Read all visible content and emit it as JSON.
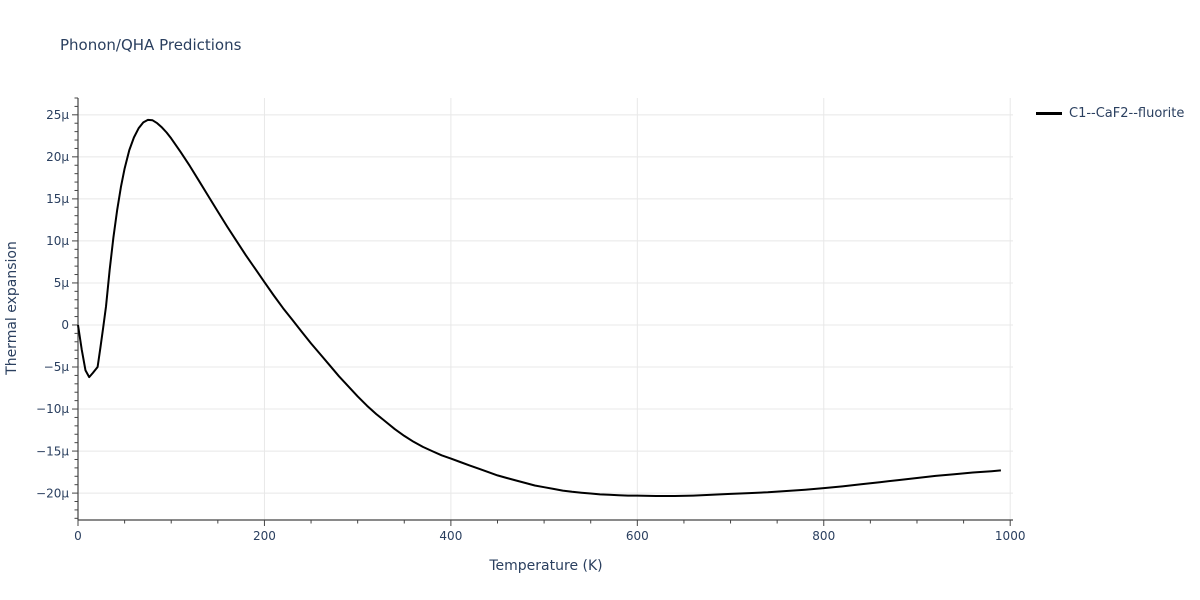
{
  "chart_data": {
    "type": "line",
    "title": "Phonon/QHA Predictions",
    "xlabel": "Temperature (K)",
    "ylabel": "Thermal expansion",
    "x_range": [
      0,
      1003
    ],
    "y_range": [
      -23.2,
      27.0
    ],
    "x_ticks": [
      0,
      200,
      400,
      600,
      800,
      1000
    ],
    "x_tick_labels": [
      "0",
      "200",
      "400",
      "600",
      "800",
      "1000"
    ],
    "x_minor_step": 50,
    "y_ticks": [
      -20,
      -15,
      -10,
      -5,
      0,
      5,
      10,
      15,
      20,
      25
    ],
    "y_tick_labels": [
      "−20µ",
      "−15µ",
      "−10µ",
      "−5µ",
      "0",
      "5µ",
      "10µ",
      "15µ",
      "20µ",
      "25µ"
    ],
    "y_minor_step": 1,
    "grid": true,
    "legend_position": "top-right outside plot",
    "colors": {
      "text": "#2a3f5f",
      "axis": "#444444",
      "grid": "#e8e8e8",
      "background": "#ffffff"
    },
    "series": [
      {
        "name": "C1--CaF2--fluorite",
        "color": "#000000",
        "line_width": 2,
        "points": [
          [
            0,
            0
          ],
          [
            4,
            -2.9
          ],
          [
            8,
            -5.4
          ],
          [
            12,
            -6.2
          ],
          [
            16,
            -5.7
          ],
          [
            21,
            -5.0
          ],
          [
            24,
            -2.7
          ],
          [
            27,
            -0.3
          ],
          [
            30,
            2.2
          ],
          [
            34,
            6.6
          ],
          [
            38,
            10.4
          ],
          [
            42,
            13.7
          ],
          [
            46,
            16.4
          ],
          [
            50,
            18.6
          ],
          [
            55,
            20.8
          ],
          [
            60,
            22.3
          ],
          [
            65,
            23.4
          ],
          [
            70,
            24.1
          ],
          [
            75,
            24.4
          ],
          [
            80,
            24.35
          ],
          [
            85,
            24.0
          ],
          [
            90,
            23.5
          ],
          [
            95,
            22.9
          ],
          [
            100,
            22.2
          ],
          [
            110,
            20.6
          ],
          [
            120,
            18.9
          ],
          [
            130,
            17.1
          ],
          [
            140,
            15.3
          ],
          [
            150,
            13.5
          ],
          [
            160,
            11.7
          ],
          [
            170,
            10.0
          ],
          [
            180,
            8.3
          ],
          [
            190,
            6.7
          ],
          [
            200,
            5.1
          ],
          [
            210,
            3.5
          ],
          [
            220,
            2.0
          ],
          [
            230,
            0.6
          ],
          [
            240,
            -0.8
          ],
          [
            250,
            -2.2
          ],
          [
            260,
            -3.5
          ],
          [
            270,
            -4.8
          ],
          [
            280,
            -6.1
          ],
          [
            290,
            -7.3
          ],
          [
            300,
            -8.5
          ],
          [
            310,
            -9.6
          ],
          [
            320,
            -10.6
          ],
          [
            330,
            -11.5
          ],
          [
            340,
            -12.4
          ],
          [
            350,
            -13.2
          ],
          [
            360,
            -13.9
          ],
          [
            370,
            -14.5
          ],
          [
            380,
            -15.0
          ],
          [
            390,
            -15.5
          ],
          [
            400,
            -15.9
          ],
          [
            410,
            -16.3
          ],
          [
            420,
            -16.7
          ],
          [
            430,
            -17.1
          ],
          [
            440,
            -17.5
          ],
          [
            450,
            -17.9
          ],
          [
            460,
            -18.2
          ],
          [
            470,
            -18.5
          ],
          [
            480,
            -18.8
          ],
          [
            490,
            -19.1
          ],
          [
            500,
            -19.3
          ],
          [
            510,
            -19.5
          ],
          [
            520,
            -19.7
          ],
          [
            530,
            -19.85
          ],
          [
            540,
            -19.95
          ],
          [
            550,
            -20.05
          ],
          [
            560,
            -20.15
          ],
          [
            570,
            -20.2
          ],
          [
            580,
            -20.25
          ],
          [
            590,
            -20.3
          ],
          [
            600,
            -20.3
          ],
          [
            620,
            -20.35
          ],
          [
            640,
            -20.35
          ],
          [
            660,
            -20.3
          ],
          [
            680,
            -20.2
          ],
          [
            700,
            -20.1
          ],
          [
            720,
            -20.0
          ],
          [
            740,
            -19.9
          ],
          [
            760,
            -19.75
          ],
          [
            780,
            -19.6
          ],
          [
            800,
            -19.4
          ],
          [
            820,
            -19.2
          ],
          [
            840,
            -18.95
          ],
          [
            860,
            -18.7
          ],
          [
            880,
            -18.45
          ],
          [
            900,
            -18.2
          ],
          [
            920,
            -17.95
          ],
          [
            940,
            -17.75
          ],
          [
            960,
            -17.55
          ],
          [
            980,
            -17.4
          ],
          [
            990,
            -17.3
          ]
        ]
      }
    ]
  },
  "legend": {
    "items": [
      {
        "label": "C1--CaF2--fluorite",
        "color": "#000000"
      }
    ]
  }
}
